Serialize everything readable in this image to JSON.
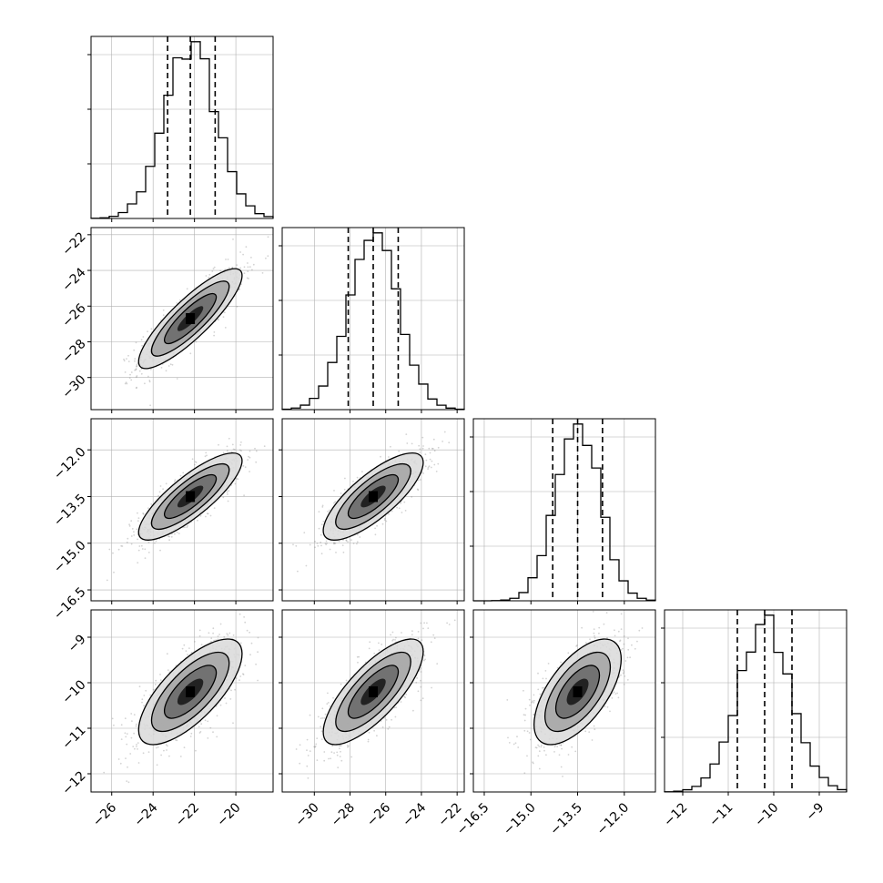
{
  "chart_data": {
    "type": "corner",
    "description_free": true,
    "parameters": [
      {
        "ticks": [
          -26,
          -24,
          -22,
          -20
        ],
        "tick_labels": [
          "−26",
          "−24",
          "−22",
          "−20"
        ],
        "range": [
          -27.0,
          -18.2
        ],
        "mean": -22.2,
        "sd": 1.25,
        "q16": -23.3,
        "q50": -22.2,
        "q84": -21.0
      },
      {
        "ticks": [
          -30,
          -28,
          -26,
          -24,
          -22
        ],
        "tick_labels": [
          "−30",
          "−28",
          "−26",
          "−24",
          "−22"
        ],
        "range": [
          -31.8,
          -21.6
        ],
        "mean": -26.7,
        "sd": 1.4,
        "q16": -28.1,
        "q50": -26.7,
        "q84": -25.3
      },
      {
        "ticks": [
          -16.5,
          -15.0,
          -13.5,
          -12.0
        ],
        "tick_labels": [
          "−16.5",
          "−15.0",
          "−13.5",
          "−12.0"
        ],
        "range": [
          -16.85,
          -11.0
        ],
        "mean": -13.5,
        "sd": 0.7,
        "q16": -14.3,
        "q50": -13.5,
        "q84": -12.7
      },
      {
        "ticks": [
          -12,
          -11,
          -10,
          -9
        ],
        "tick_labels": [
          "−12",
          "−11",
          "−10",
          "−9"
        ],
        "range": [
          -12.4,
          -8.4
        ],
        "mean": -10.2,
        "sd": 0.58,
        "q16": -10.8,
        "q50": -10.2,
        "q84": -9.6
      }
    ],
    "correlations": [
      [
        1,
        0.86,
        0.82,
        0.72
      ],
      [
        0.86,
        1,
        0.78,
        0.76
      ],
      [
        0.82,
        0.78,
        1,
        0.62
      ],
      [
        0.72,
        0.76,
        0.62,
        1
      ]
    ],
    "histogram_bins": 20,
    "contour_levels": 3,
    "quantile_style": "dashed",
    "grid": true,
    "colors": {
      "line": "#000000",
      "scatter": "#808080",
      "grid": "#b0b0b0",
      "contour_fill": [
        "#d9d9d9",
        "#a6a6a6",
        "#6b6b6b",
        "#1a1a1a"
      ]
    }
  }
}
